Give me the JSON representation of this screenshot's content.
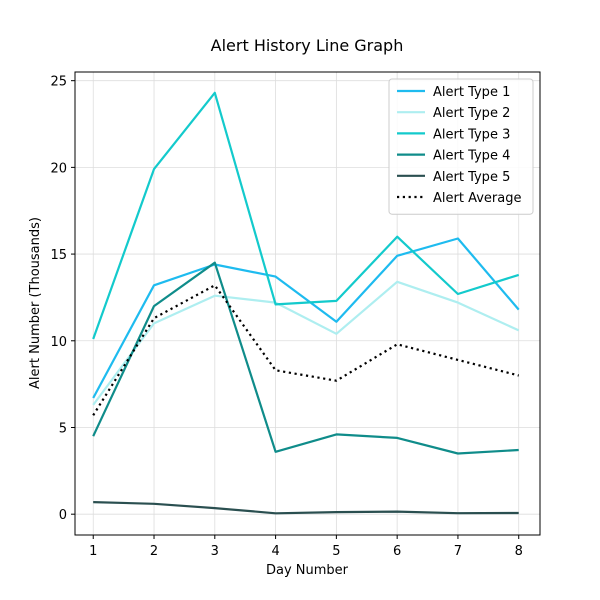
{
  "chart_data": {
    "type": "line",
    "title": "Alert History Line Graph",
    "xlabel": "Day Number",
    "ylabel": "Alert Number (Thousands)",
    "x": [
      1,
      2,
      3,
      4,
      5,
      6,
      7,
      8
    ],
    "xlim": [
      0.7,
      8.35
    ],
    "ylim": [
      -1.2,
      25.5
    ],
    "yticks": [
      0,
      5,
      10,
      15,
      20,
      25
    ],
    "grid": true,
    "legend_position": "top-right",
    "series": [
      {
        "name": "Alert Type 1",
        "color": "#1ebbef",
        "style": "solid",
        "values": [
          6.7,
          13.2,
          14.4,
          13.7,
          11.1,
          14.9,
          15.9,
          11.8
        ]
      },
      {
        "name": "Alert Type 2",
        "color": "#aeeef0",
        "style": "solid",
        "values": [
          6.3,
          11.0,
          12.6,
          12.2,
          10.4,
          13.4,
          12.2,
          10.6
        ]
      },
      {
        "name": "Alert Type 3",
        "color": "#13cacc",
        "style": "solid",
        "values": [
          10.1,
          19.9,
          24.3,
          12.1,
          12.3,
          16.0,
          12.7,
          13.8
        ]
      },
      {
        "name": "Alert Type 4",
        "color": "#0f8c8a",
        "style": "solid",
        "values": [
          4.5,
          12.0,
          14.5,
          3.6,
          4.6,
          4.4,
          3.5,
          3.7
        ]
      },
      {
        "name": "Alert Type 5",
        "color": "#2a4f50",
        "style": "solid",
        "values": [
          0.7,
          0.6,
          0.35,
          0.05,
          0.12,
          0.15,
          0.06,
          0.07
        ]
      },
      {
        "name": "Alert Average",
        "color": "#000000",
        "style": "dotted",
        "values": [
          5.7,
          11.3,
          13.2,
          8.3,
          7.7,
          9.8,
          8.9,
          8.0
        ]
      }
    ]
  }
}
